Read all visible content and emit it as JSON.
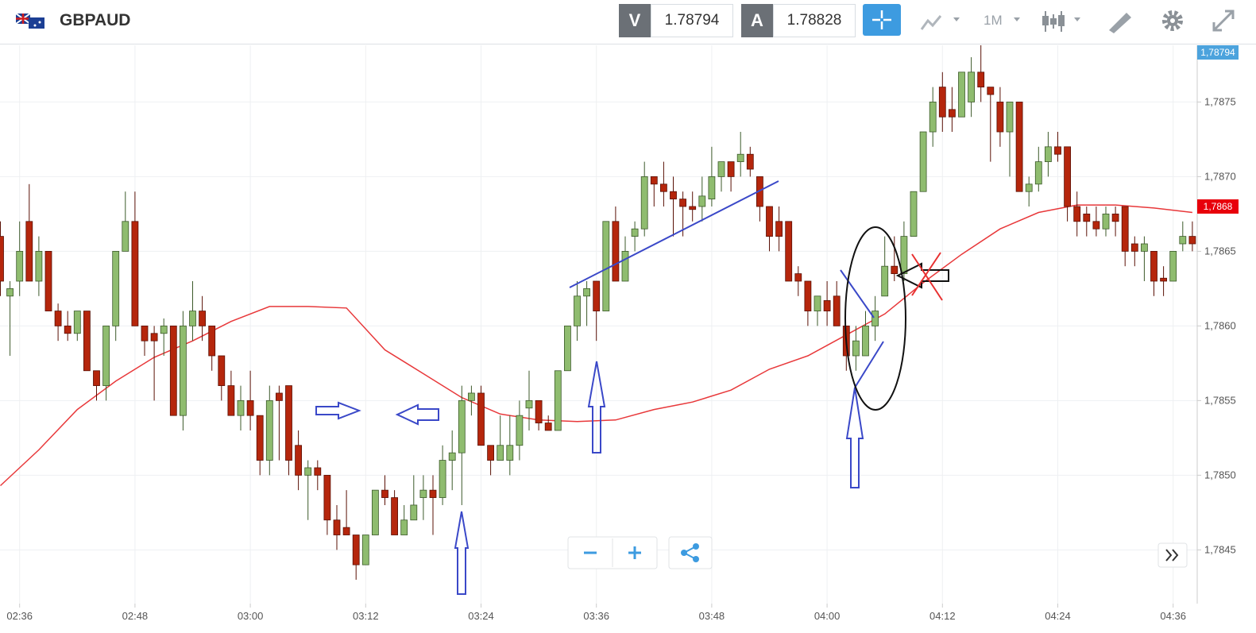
{
  "toolbar": {
    "symbol": "GBPAUD",
    "sell_label": "V",
    "sell": "1.78794",
    "buy_label": "A",
    "buy": "1.78828",
    "timeframe": "1M"
  },
  "chart_data": {
    "type": "candlestick",
    "x": [
      "02:34",
      "02:35",
      "02:36",
      "02:37",
      "02:38",
      "02:39",
      "02:40",
      "02:41",
      "02:42",
      "02:43",
      "02:44",
      "02:45",
      "02:46",
      "02:47",
      "02:48",
      "02:49",
      "02:50",
      "02:51",
      "02:52",
      "02:53",
      "02:54",
      "02:55",
      "02:56",
      "02:57",
      "02:58",
      "02:59",
      "03:00",
      "03:01",
      "03:02",
      "03:03",
      "03:04",
      "03:05",
      "03:06",
      "03:07",
      "03:08",
      "03:09",
      "03:10",
      "03:11",
      "03:12",
      "03:13",
      "03:14",
      "03:15",
      "03:16",
      "03:17",
      "03:18",
      "03:19",
      "03:20",
      "03:21",
      "03:22",
      "03:23",
      "03:24",
      "03:25",
      "03:26",
      "03:27",
      "03:28",
      "03:29",
      "03:30",
      "03:31",
      "03:32",
      "03:33",
      "03:34",
      "03:35",
      "03:36",
      "03:37",
      "03:38",
      "03:39",
      "03:40",
      "03:41",
      "03:42",
      "03:43",
      "03:44",
      "03:45",
      "03:46",
      "03:47",
      "03:48",
      "03:49",
      "03:50",
      "03:51",
      "03:52",
      "03:53",
      "03:54",
      "03:55",
      "03:56",
      "03:57",
      "03:58",
      "03:59",
      "04:00",
      "04:01",
      "04:02",
      "04:03",
      "04:04",
      "04:05",
      "04:06",
      "04:07",
      "04:08",
      "04:09",
      "04:10",
      "04:11",
      "04:12",
      "04:13",
      "04:14",
      "04:15",
      "04:16",
      "04:17",
      "04:18",
      "04:19",
      "04:20",
      "04:21",
      "04:22",
      "04:23",
      "04:24",
      "04:25",
      "04:26",
      "04:27",
      "04:28",
      "04:29",
      "04:30",
      "04:31",
      "04:32",
      "04:33",
      "04:34",
      "04:35",
      "04:36",
      "04:37",
      "04:38"
    ],
    "open": [
      1.7866,
      1.7862,
      1.7863,
      1.7867,
      1.7863,
      1.7865,
      1.7861,
      1.786,
      1.78595,
      1.7861,
      1.7857,
      1.7856,
      1.786,
      1.7865,
      1.7867,
      1.786,
      1.78595,
      1.78595,
      1.786,
      1.7854,
      1.786,
      1.7861,
      1.786,
      1.7858,
      1.7856,
      1.7854,
      1.7855,
      1.7854,
      1.7851,
      1.78555,
      1.7856,
      1.7852,
      1.785,
      1.78505,
      1.785,
      1.7847,
      1.78465,
      1.7846,
      1.7844,
      1.7846,
      1.7849,
      1.78485,
      1.7846,
      1.7847,
      1.78485,
      1.7849,
      1.78485,
      1.7851,
      1.78515,
      1.7855,
      1.78555,
      1.7852,
      1.7851,
      1.7851,
      1.7852,
      1.78545,
      1.7855,
      1.78535,
      1.7853,
      1.7857,
      1.786,
      1.7862,
      1.7863,
      1.7861,
      1.7867,
      1.7863,
      1.7866,
      1.78665,
      1.787,
      1.78695,
      1.7869,
      1.78685,
      1.7868,
      1.7868,
      1.78685,
      1.787,
      1.7871,
      1.7871,
      1.78715,
      1.787,
      1.7868,
      1.7867,
      1.7867,
      1.78635,
      1.7863,
      1.7861,
      1.78617,
      1.7862,
      1.786,
      1.7858,
      1.7858,
      1.786,
      1.7862,
      1.7864,
      1.78635,
      1.7866,
      1.7869,
      1.7873,
      1.7876,
      1.78745,
      1.7874,
      1.7875,
      1.7877,
      1.7876,
      1.7875,
      1.7873,
      1.7875,
      1.7869,
      1.78695,
      1.7871,
      1.7872,
      1.7872,
      1.7868,
      1.78675,
      1.7867,
      1.78665,
      1.78675,
      1.7868,
      1.78655,
      1.7865,
      1.7865,
      1.78632,
      1.7863,
      1.78655,
      1.7866
    ],
    "high": [
      1.7867,
      1.7863,
      1.7867,
      1.78695,
      1.7866,
      1.7865,
      1.78615,
      1.7861,
      1.7861,
      1.7861,
      1.7857,
      1.786,
      1.7865,
      1.7869,
      1.7869,
      1.786,
      1.786,
      1.78605,
      1.786,
      1.7861,
      1.7863,
      1.7862,
      1.786,
      1.7858,
      1.7857,
      1.7856,
      1.7857,
      1.7854,
      1.7856,
      1.7856,
      1.7856,
      1.7853,
      1.7851,
      1.7851,
      1.785,
      1.7848,
      1.7849,
      1.7846,
      1.7846,
      1.7849,
      1.785,
      1.7849,
      1.7848,
      1.785,
      1.785,
      1.785,
      1.7852,
      1.7853,
      1.7856,
      1.7856,
      1.7856,
      1.7852,
      1.7854,
      1.7854,
      1.7855,
      1.7857,
      1.7855,
      1.7854,
      1.7857,
      1.786,
      1.7863,
      1.7863,
      1.7863,
      1.7867,
      1.7868,
      1.7866,
      1.7867,
      1.7871,
      1.787,
      1.7871,
      1.787,
      1.7869,
      1.7869,
      1.787,
      1.7872,
      1.7871,
      1.7871,
      1.7873,
      1.7872,
      1.787,
      1.7868,
      1.7868,
      1.7867,
      1.7864,
      1.7863,
      1.7862,
      1.7863,
      1.7863,
      1.786,
      1.786,
      1.7861,
      1.7862,
      1.7866,
      1.7866,
      1.7867,
      1.7869,
      1.7873,
      1.7876,
      1.7877,
      1.7876,
      1.7877,
      1.7878,
      1.7879,
      1.7876,
      1.7876,
      1.7875,
      1.7875,
      1.787,
      1.7872,
      1.7873,
      1.7873,
      1.7872,
      1.7869,
      1.7868,
      1.7868,
      1.7868,
      1.7868,
      1.7868,
      1.7866,
      1.7866,
      1.7865,
      1.7864,
      1.7865,
      1.7867,
      1.7867
    ],
    "low": [
      1.7862,
      1.7858,
      1.7862,
      1.7863,
      1.7862,
      1.7861,
      1.7859,
      1.7859,
      1.7859,
      1.7857,
      1.7855,
      1.7855,
      1.7859,
      1.7865,
      1.786,
      1.7858,
      1.7855,
      1.7858,
      1.7854,
      1.7853,
      1.7859,
      1.7859,
      1.7857,
      1.7855,
      1.7854,
      1.7853,
      1.7853,
      1.785,
      1.785,
      1.7851,
      1.785,
      1.7849,
      1.7847,
      1.7849,
      1.7846,
      1.7845,
      1.7846,
      1.7843,
      1.7844,
      1.7846,
      1.7848,
      1.7846,
      1.7846,
      1.7847,
      1.7847,
      1.7846,
      1.7848,
      1.7849,
      1.7848,
      1.7854,
      1.7852,
      1.785,
      1.7851,
      1.785,
      1.7851,
      1.7853,
      1.7853,
      1.7853,
      1.7853,
      1.7857,
      1.7859,
      1.786,
      1.7859,
      1.7861,
      1.7863,
      1.7863,
      1.7865,
      1.7866,
      1.7868,
      1.7868,
      1.7866,
      1.7866,
      1.7867,
      1.7867,
      1.7868,
      1.7869,
      1.7869,
      1.787,
      1.787,
      1.7867,
      1.7865,
      1.7865,
      1.7863,
      1.7862,
      1.786,
      1.786,
      1.786,
      1.786,
      1.7857,
      1.7857,
      1.7858,
      1.7859,
      1.7862,
      1.7863,
      1.7863,
      1.7866,
      1.7869,
      1.7872,
      1.7873,
      1.7873,
      1.7874,
      1.7874,
      1.7875,
      1.7871,
      1.7872,
      1.787,
      1.7869,
      1.7868,
      1.7869,
      1.787,
      1.7871,
      1.7867,
      1.7866,
      1.7866,
      1.7866,
      1.7866,
      1.7866,
      1.7864,
      1.7864,
      1.7863,
      1.7862,
      1.7862,
      1.7863,
      1.7865,
      1.7865
    ],
    "close": [
      1.7863,
      1.78625,
      1.7865,
      1.7863,
      1.7865,
      1.7861,
      1.786,
      1.78595,
      1.7861,
      1.7857,
      1.7856,
      1.786,
      1.7865,
      1.7867,
      1.786,
      1.7859,
      1.7859,
      1.786,
      1.7854,
      1.786,
      1.7861,
      1.786,
      1.7858,
      1.7856,
      1.7854,
      1.7855,
      1.7854,
      1.7851,
      1.7855,
      1.7855,
      1.7851,
      1.785,
      1.78505,
      1.785,
      1.7847,
      1.7846,
      1.7846,
      1.7844,
      1.7846,
      1.7849,
      1.78485,
      1.7846,
      1.7847,
      1.7848,
      1.7849,
      1.78485,
      1.7851,
      1.78515,
      1.7855,
      1.78555,
      1.7852,
      1.7851,
      1.7852,
      1.7852,
      1.7854,
      1.7855,
      1.78535,
      1.7853,
      1.7857,
      1.786,
      1.7862,
      1.78625,
      1.7861,
      1.7867,
      1.7863,
      1.7865,
      1.78665,
      1.787,
      1.78695,
      1.7869,
      1.78685,
      1.7868,
      1.78678,
      1.78687,
      1.787,
      1.7871,
      1.787,
      1.78715,
      1.78705,
      1.7868,
      1.7866,
      1.7866,
      1.7863,
      1.7863,
      1.7861,
      1.7862,
      1.7861,
      1.786,
      1.7858,
      1.7859,
      1.786,
      1.7861,
      1.7864,
      1.78635,
      1.7866,
      1.7869,
      1.7873,
      1.7875,
      1.7874,
      1.7874,
      1.7877,
      1.7877,
      1.7876,
      1.78755,
      1.7873,
      1.7875,
      1.7869,
      1.78695,
      1.7871,
      1.7872,
      1.78715,
      1.7868,
      1.7867,
      1.7867,
      1.78665,
      1.78675,
      1.7867,
      1.7865,
      1.7865,
      1.78655,
      1.7863,
      1.7863,
      1.7865,
      1.7866,
      1.78655
    ],
    "up_color": "#8fbc6f",
    "down_color": "#b5260c",
    "moving_average": {
      "color": "#e8383a",
      "x": [
        "02:34",
        "02:38",
        "02:42",
        "02:46",
        "02:50",
        "02:54",
        "02:58",
        "03:02",
        "03:06",
        "03:10",
        "03:14",
        "03:18",
        "03:22",
        "03:26",
        "03:30",
        "03:34",
        "03:38",
        "03:42",
        "03:46",
        "03:50",
        "03:54",
        "03:58",
        "04:02",
        "04:06",
        "04:10",
        "04:14",
        "04:18",
        "04:22",
        "04:26",
        "04:30",
        "04:34",
        "04:38"
      ],
      "values": [
        1.78493,
        1.78517,
        1.78544,
        1.78563,
        1.78579,
        1.7859,
        1.78603,
        1.78613,
        1.78613,
        1.78612,
        1.78584,
        1.78568,
        1.78552,
        1.78541,
        1.78537,
        1.78536,
        1.78537,
        1.78544,
        1.78549,
        1.78557,
        1.78571,
        1.7858,
        1.78594,
        1.78608,
        1.78629,
        1.78648,
        1.78665,
        1.78676,
        1.78681,
        1.78681,
        1.78679,
        1.78676
      ]
    },
    "ylim": [
      1.78414,
      1.78788
    ],
    "yticks": [
      {
        "value": 1.7845,
        "label": "1,7845"
      },
      {
        "value": 1.785,
        "label": "1,7850"
      },
      {
        "value": 1.7855,
        "label": "1,7855"
      },
      {
        "value": 1.786,
        "label": "1,7860"
      },
      {
        "value": 1.7865,
        "label": "1,7865"
      },
      {
        "value": 1.787,
        "label": "1,7870"
      },
      {
        "value": 1.7875,
        "label": "1,7875"
      }
    ],
    "xticks": [
      "02:36",
      "02:48",
      "03:00",
      "03:12",
      "03:24",
      "03:36",
      "03:48",
      "04:00",
      "04:12",
      "04:24",
      "04:36"
    ],
    "grid": true,
    "price_tags": [
      {
        "value": 1.78794,
        "label": "1,78794",
        "color": "#4ca3dd"
      },
      {
        "value": 1.7868,
        "label": "1,7868",
        "color": "#e8000b"
      }
    ]
  }
}
